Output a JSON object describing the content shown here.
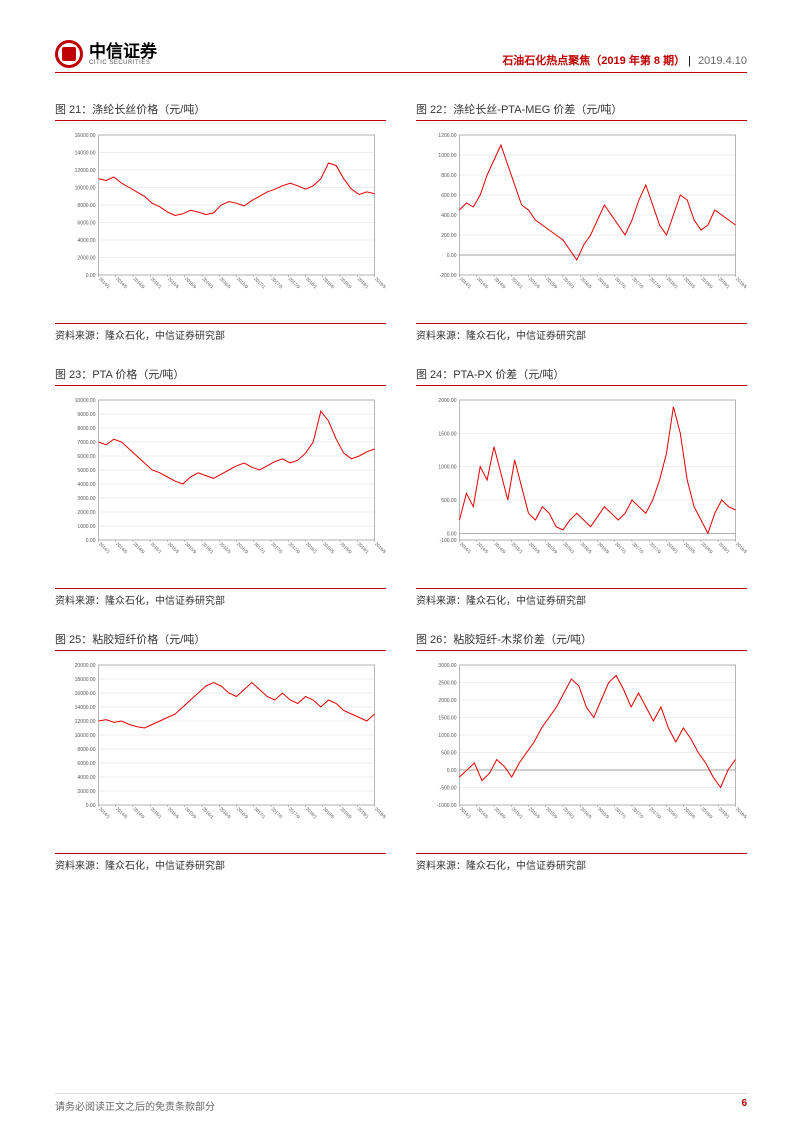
{
  "header": {
    "logo_cn": "中信证券",
    "logo_en": "CITIC SECURITIES",
    "doc_title": "石油石化热点聚焦（2019 年第 8 期）",
    "doc_date": "2019.4.10"
  },
  "footer": {
    "disclaimer": "请务必阅读正文之后的免责条款部分",
    "page_num": "6"
  },
  "source_label": "资料来源：",
  "source_text": "隆众石化，中信证券研究部",
  "charts": [
    {
      "title": "图 21：涤纶长丝价格（元/吨）",
      "type": "line",
      "line_color": "#e30000",
      "background_color": "#ffffff",
      "grid_color": "#dddddd",
      "axis_color": "#888888",
      "label_fontsize": 5,
      "ylim": [
        0,
        16000
      ],
      "ytick_step": 2000,
      "yticks": [
        "0.00",
        "2000.00",
        "4000.00",
        "6000.00",
        "8000.00",
        "10000.00",
        "12000.00",
        "14000.00",
        "16000.00"
      ],
      "xlabels": [
        "2014/1",
        "2014/5",
        "2014/9",
        "2015/1",
        "2015/5",
        "2015/9",
        "2016/1",
        "2016/5",
        "2016/9",
        "2017/1",
        "2017/5",
        "2017/9",
        "2018/1",
        "2018/5",
        "2018/9",
        "2019/1",
        "2019/5"
      ],
      "values": [
        11000,
        10800,
        11200,
        10500,
        10000,
        9500,
        9000,
        8200,
        7800,
        7200,
        6800,
        7000,
        7400,
        7200,
        6900,
        7100,
        8000,
        8400,
        8200,
        7900,
        8500,
        9000,
        9500,
        9800,
        10200,
        10500,
        10200,
        9800,
        10200,
        11000,
        12800,
        12500,
        11000,
        9800,
        9200,
        9500,
        9300
      ]
    },
    {
      "title": "图 22：涤纶长丝-PTA-MEG 价差（元/吨）",
      "type": "line",
      "line_color": "#e30000",
      "background_color": "#ffffff",
      "grid_color": "#dddddd",
      "axis_color": "#888888",
      "label_fontsize": 5,
      "ylim": [
        -200,
        1200
      ],
      "ytick_step": 200,
      "yticks": [
        "-200.00",
        "0.00",
        "200.00",
        "400.00",
        "600.00",
        "800.00",
        "1000.00",
        "1200.00"
      ],
      "xlabels": [
        "2014/1",
        "2014/5",
        "2014/9",
        "2015/1",
        "2015/5",
        "2015/9",
        "2016/1",
        "2016/5",
        "2016/9",
        "2017/1",
        "2017/5",
        "2017/9",
        "2018/1",
        "2018/5",
        "2018/9",
        "2019/1",
        "2019/5"
      ],
      "values": [
        450,
        520,
        480,
        600,
        800,
        950,
        1100,
        900,
        700,
        500,
        450,
        350,
        300,
        250,
        200,
        150,
        50,
        -50,
        100,
        200,
        350,
        500,
        400,
        300,
        200,
        350,
        550,
        700,
        500,
        300,
        200,
        400,
        600,
        550,
        350,
        250,
        300,
        450,
        400,
        350,
        300
      ]
    },
    {
      "title": "图 23：PTA 价格（元/吨）",
      "type": "line",
      "line_color": "#e30000",
      "background_color": "#ffffff",
      "grid_color": "#dddddd",
      "axis_color": "#888888",
      "label_fontsize": 5,
      "ylim": [
        0,
        10000
      ],
      "ytick_step": 1000,
      "yticks": [
        "0.00",
        "1000.00",
        "2000.00",
        "3000.00",
        "4000.00",
        "5000.00",
        "6000.00",
        "7000.00",
        "8000.00",
        "9000.00",
        "10000.00"
      ],
      "xlabels": [
        "2014/1",
        "2014/5",
        "2014/9",
        "2015/1",
        "2015/5",
        "2015/9",
        "2016/1",
        "2016/5",
        "2016/9",
        "2017/1",
        "2017/5",
        "2017/9",
        "2018/1",
        "2018/5",
        "2018/9",
        "2019/1",
        "2019/5"
      ],
      "values": [
        7000,
        6800,
        7200,
        7000,
        6500,
        6000,
        5500,
        5000,
        4800,
        4500,
        4200,
        4000,
        4500,
        4800,
        4600,
        4400,
        4700,
        5000,
        5300,
        5500,
        5200,
        5000,
        5300,
        5600,
        5800,
        5500,
        5700,
        6200,
        7000,
        9200,
        8500,
        7200,
        6200,
        5800,
        6000,
        6300,
        6500
      ]
    },
    {
      "title": "图 24：PTA-PX 价差（元/吨）",
      "type": "line",
      "line_color": "#e30000",
      "background_color": "#ffffff",
      "grid_color": "#dddddd",
      "axis_color": "#888888",
      "label_fontsize": 5,
      "ylim": [
        -100,
        2000
      ],
      "ytick_step": 500,
      "yticks": [
        "-100.00",
        "0.00",
        "500.00",
        "1000.00",
        "1500.00",
        "2000.00"
      ],
      "xlabels": [
        "2014/1",
        "2014/5",
        "2014/9",
        "2015/1",
        "2015/5",
        "2015/9",
        "2016/1",
        "2016/5",
        "2016/9",
        "2017/1",
        "2017/5",
        "2017/9",
        "2018/1",
        "2018/5",
        "2018/9",
        "2019/1",
        "2019/5"
      ],
      "values": [
        200,
        600,
        400,
        1000,
        800,
        1300,
        900,
        500,
        1100,
        700,
        300,
        200,
        400,
        300,
        100,
        50,
        200,
        300,
        200,
        100,
        250,
        400,
        300,
        200,
        300,
        500,
        400,
        300,
        500,
        800,
        1200,
        1900,
        1500,
        800,
        400,
        200,
        0,
        300,
        500,
        400,
        350
      ]
    },
    {
      "title": "图 25：粘胶短纤价格（元/吨）",
      "type": "line",
      "line_color": "#e30000",
      "background_color": "#ffffff",
      "grid_color": "#dddddd",
      "axis_color": "#888888",
      "label_fontsize": 5,
      "ylim": [
        0,
        20000
      ],
      "ytick_step": 2000,
      "yticks": [
        "0.00",
        "2000.00",
        "4000.00",
        "6000.00",
        "8000.00",
        "10000.00",
        "12000.00",
        "14000.00",
        "16000.00",
        "18000.00",
        "20000.00"
      ],
      "xlabels": [
        "2014/1",
        "2014/5",
        "2014/9",
        "2015/1",
        "2015/5",
        "2015/9",
        "2016/1",
        "2016/5",
        "2016/9",
        "2017/1",
        "2017/5",
        "2017/9",
        "2018/1",
        "2018/5",
        "2018/9",
        "2019/1",
        "2019/5"
      ],
      "values": [
        12000,
        12200,
        11800,
        12000,
        11500,
        11200,
        11000,
        11500,
        12000,
        12500,
        13000,
        14000,
        15000,
        16000,
        17000,
        17500,
        17000,
        16000,
        15500,
        16500,
        17500,
        16500,
        15500,
        15000,
        16000,
        15000,
        14500,
        15500,
        15000,
        14000,
        15000,
        14500,
        13500,
        13000,
        12500,
        12000,
        13000
      ]
    },
    {
      "title": "图 26：粘胶短纤-木浆价差（元/吨）",
      "type": "line",
      "line_color": "#e30000",
      "background_color": "#ffffff",
      "grid_color": "#dddddd",
      "axis_color": "#888888",
      "label_fontsize": 5,
      "ylim": [
        -1000,
        3000
      ],
      "ytick_step": 500,
      "yticks": [
        "-1000.00",
        "-500.00",
        "0.00",
        "500.00",
        "1000.00",
        "1500.00",
        "2000.00",
        "2500.00",
        "3000.00"
      ],
      "xlabels": [
        "2014/1",
        "2014/5",
        "2014/9",
        "2015/1",
        "2015/5",
        "2015/9",
        "2016/1",
        "2016/5",
        "2016/9",
        "2017/1",
        "2017/5",
        "2017/9",
        "2018/1",
        "2018/5",
        "2018/9",
        "2019/1",
        "2019/5"
      ],
      "values": [
        -200,
        0,
        200,
        -300,
        -100,
        300,
        100,
        -200,
        200,
        500,
        800,
        1200,
        1500,
        1800,
        2200,
        2600,
        2400,
        1800,
        1500,
        2000,
        2500,
        2700,
        2300,
        1800,
        2200,
        1800,
        1400,
        1800,
        1200,
        800,
        1200,
        900,
        500,
        200,
        -200,
        -500,
        0,
        300
      ]
    }
  ]
}
